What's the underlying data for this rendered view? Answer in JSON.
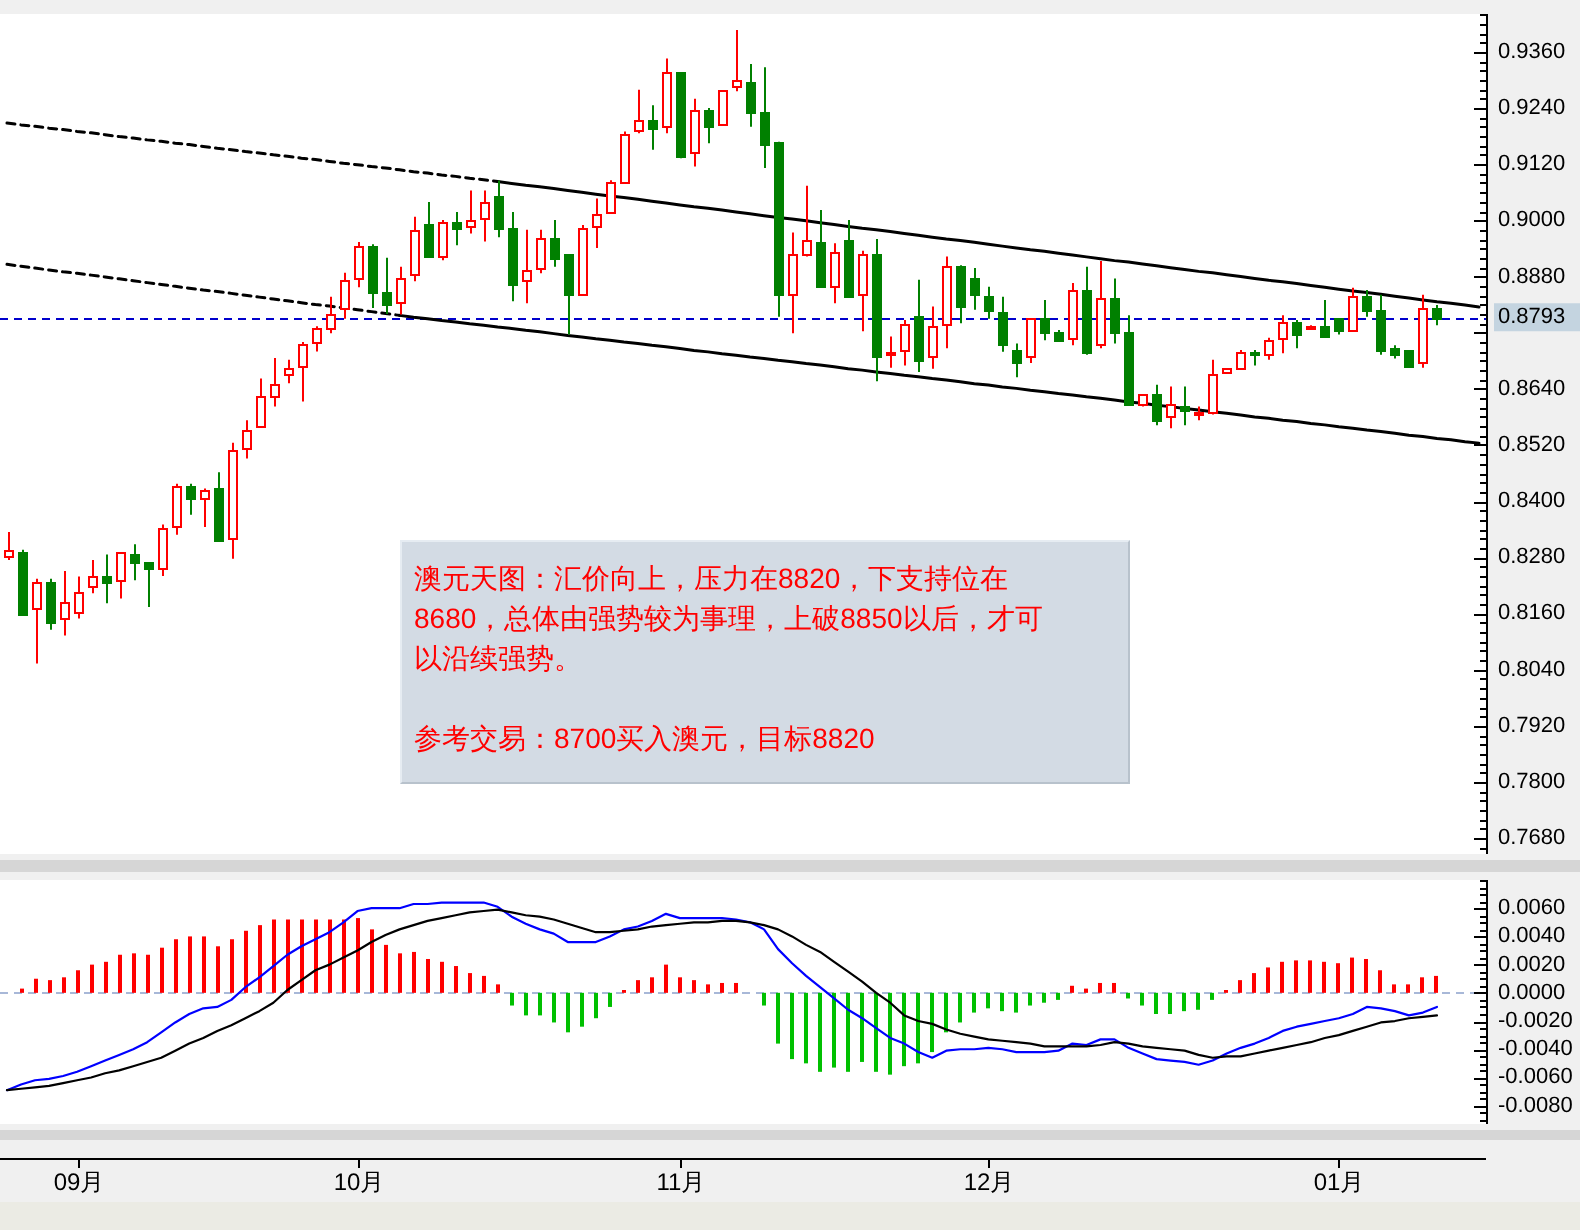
{
  "chart_data": [
    {
      "type": "candlestick",
      "categories": [
        null,
        null,
        null,
        null,
        null,
        null,
        null,
        null,
        null,
        null,
        null,
        null,
        null,
        null,
        null,
        null,
        null,
        null,
        null,
        null,
        null,
        null,
        null,
        null,
        null,
        null,
        null,
        null,
        null,
        null,
        null,
        null,
        null,
        null,
        null,
        null,
        null,
        null,
        null,
        null,
        null,
        null,
        null,
        null,
        null,
        null,
        null,
        null,
        null,
        null,
        null,
        null,
        null,
        null,
        null,
        null,
        null,
        null,
        null,
        null,
        null,
        null,
        null,
        null,
        null,
        null,
        null,
        null,
        null,
        null,
        null,
        null,
        null,
        null,
        null,
        null,
        null,
        null,
        null,
        null,
        null,
        null,
        null,
        null,
        null,
        null,
        null,
        null,
        null,
        null,
        null,
        null,
        null,
        null,
        null,
        null,
        null,
        null,
        null,
        null,
        null,
        null,
        null,
        null,
        null,
        null
      ],
      "ohlc": [
        [
          0.8281,
          0.8334,
          0.8274,
          0.8296
        ],
        [
          0.8291,
          0.8296,
          0.8157,
          0.816
        ],
        [
          0.817,
          0.8234,
          0.8053,
          0.8227
        ],
        [
          0.8227,
          0.8234,
          0.8125,
          0.8143
        ],
        [
          0.8149,
          0.8251,
          0.8113,
          0.8184
        ],
        [
          0.8162,
          0.8239,
          0.8149,
          0.8207
        ],
        [
          0.8217,
          0.8274,
          0.8203,
          0.8239
        ],
        [
          0.824,
          0.8286,
          0.8182,
          0.8229
        ],
        [
          0.823,
          0.8291,
          0.8192,
          0.8291
        ],
        [
          0.8286,
          0.8308,
          0.8231,
          0.8271
        ],
        [
          0.827,
          0.827,
          0.8174,
          0.8256
        ],
        [
          0.8256,
          0.835,
          0.824,
          0.8341
        ],
        [
          0.8345,
          0.8437,
          0.8328,
          0.8432
        ],
        [
          0.8432,
          0.8437,
          0.8371,
          0.8405
        ],
        [
          0.8408,
          0.8427,
          0.8345,
          0.8422
        ],
        [
          0.8428,
          0.8462,
          0.8314,
          0.8317
        ],
        [
          0.8323,
          0.8525,
          0.8277,
          0.8508
        ],
        [
          0.8512,
          0.8573,
          0.8491,
          0.8551
        ],
        [
          0.8559,
          0.8662,
          0.8559,
          0.8623
        ],
        [
          0.8623,
          0.8706,
          0.8602,
          0.8649
        ],
        [
          0.867,
          0.8702,
          0.8652,
          0.8683
        ],
        [
          0.8687,
          0.874,
          0.8613,
          0.8734
        ],
        [
          0.8739,
          0.8774,
          0.872,
          0.8769
        ],
        [
          0.877,
          0.8837,
          0.8759,
          0.8801
        ],
        [
          0.8813,
          0.8888,
          0.879,
          0.8871
        ],
        [
          0.8878,
          0.8954,
          0.8857,
          0.8945
        ],
        [
          0.8945,
          0.8949,
          0.8813,
          0.8848
        ],
        [
          0.8847,
          0.892,
          0.88,
          0.8821
        ],
        [
          0.8826,
          0.8901,
          0.8799,
          0.8877
        ],
        [
          0.8884,
          0.9008,
          0.887,
          0.8978
        ],
        [
          0.8992,
          0.9039,
          0.8921,
          0.8923
        ],
        [
          0.8925,
          0.9001,
          0.8915,
          0.8995
        ],
        [
          0.8995,
          0.9018,
          0.8947,
          0.8982
        ],
        [
          0.8987,
          0.9064,
          0.8972,
          0.9
        ],
        [
          0.9004,
          0.9064,
          0.8955,
          0.9038
        ],
        [
          0.9052,
          0.9085,
          0.8964,
          0.8982
        ],
        [
          0.8982,
          0.9018,
          0.8827,
          0.8866
        ],
        [
          0.8871,
          0.898,
          0.8823,
          0.8893
        ],
        [
          0.8897,
          0.898,
          0.8887,
          0.8962
        ],
        [
          0.8962,
          0.9001,
          0.8901,
          0.8918
        ],
        [
          0.8928,
          0.8928,
          0.8756,
          0.8841
        ],
        [
          0.8844,
          0.899,
          0.884,
          0.8982
        ],
        [
          0.8987,
          0.9047,
          0.8941,
          0.9015
        ],
        [
          0.9018,
          0.9086,
          0.9015,
          0.9082
        ],
        [
          0.9084,
          0.919,
          0.9079,
          0.9185
        ],
        [
          0.9192,
          0.9279,
          0.9186,
          0.9213
        ],
        [
          0.9213,
          0.9246,
          0.9151,
          0.9196
        ],
        [
          0.92,
          0.9346,
          0.9186,
          0.9317
        ],
        [
          0.9317,
          0.9317,
          0.9133,
          0.9136
        ],
        [
          0.9146,
          0.926,
          0.9115,
          0.9235
        ],
        [
          0.9236,
          0.924,
          0.9165,
          0.92
        ],
        [
          0.9205,
          0.9277,
          0.9205,
          0.9277
        ],
        [
          0.9286,
          0.9407,
          0.9276,
          0.9299
        ],
        [
          0.9295,
          0.9334,
          0.92,
          0.9232
        ],
        [
          0.9232,
          0.9327,
          0.9112,
          0.9163
        ],
        [
          0.9168,
          0.9168,
          0.8794,
          0.8843
        ],
        [
          0.8841,
          0.8974,
          0.8759,
          0.893
        ],
        [
          0.893,
          0.9074,
          0.8923,
          0.8957
        ],
        [
          0.8954,
          0.9022,
          0.8856,
          0.8858
        ],
        [
          0.8861,
          0.8951,
          0.8823,
          0.8933
        ],
        [
          0.8958,
          0.9001,
          0.8834,
          0.884
        ],
        [
          0.8844,
          0.8935,
          0.8763,
          0.8928
        ],
        [
          0.8928,
          0.896,
          0.8656,
          0.8709
        ],
        [
          0.8713,
          0.8752,
          0.8685,
          0.8719
        ],
        [
          0.8723,
          0.8787,
          0.869,
          0.8777
        ],
        [
          0.8797,
          0.8873,
          0.8676,
          0.8702
        ],
        [
          0.8709,
          0.8816,
          0.8683,
          0.8773
        ],
        [
          0.8777,
          0.8923,
          0.8727,
          0.8901
        ],
        [
          0.8901,
          0.8904,
          0.878,
          0.8816
        ],
        [
          0.8876,
          0.8898,
          0.8809,
          0.8841
        ],
        [
          0.8838,
          0.8858,
          0.879,
          0.8807
        ],
        [
          0.8804,
          0.8837,
          0.8719,
          0.8736
        ],
        [
          0.8723,
          0.8737,
          0.8665,
          0.8699
        ],
        [
          0.8709,
          0.879,
          0.8695,
          0.879
        ],
        [
          0.879,
          0.883,
          0.8744,
          0.8763
        ],
        [
          0.8762,
          0.8766,
          0.874,
          0.8743
        ],
        [
          0.8747,
          0.8866,
          0.8733,
          0.8851
        ],
        [
          0.8851,
          0.8901,
          0.8713,
          0.8719
        ],
        [
          0.8737,
          0.8913,
          0.8727,
          0.8833
        ],
        [
          0.8833,
          0.8876,
          0.8737,
          0.8762
        ],
        [
          0.8762,
          0.8797,
          0.8605,
          0.8609
        ],
        [
          0.8609,
          0.8628,
          0.8602,
          0.8628
        ],
        [
          0.8628,
          0.8649,
          0.8562,
          0.8573
        ],
        [
          0.8581,
          0.8645,
          0.8556,
          0.8606
        ],
        [
          0.8602,
          0.8645,
          0.8562,
          0.8595
        ],
        [
          0.8586,
          0.8602,
          0.8573,
          0.8589
        ],
        [
          0.8592,
          0.8702,
          0.8585,
          0.867
        ],
        [
          0.8677,
          0.8683,
          0.8677,
          0.8683
        ],
        [
          0.8683,
          0.8723,
          0.868,
          0.8719
        ],
        [
          0.8719,
          0.8723,
          0.869,
          0.8713
        ],
        [
          0.8713,
          0.8749,
          0.8702,
          0.8744
        ],
        [
          0.8747,
          0.8797,
          0.8716,
          0.8783
        ],
        [
          0.8783,
          0.8787,
          0.8727,
          0.8756
        ],
        [
          0.8773,
          0.8776,
          0.8773,
          0.8776
        ],
        [
          0.8776,
          0.883,
          0.8749,
          0.8752
        ],
        [
          0.8791,
          0.8791,
          0.8756,
          0.8764
        ],
        [
          0.8764,
          0.8856,
          0.8762,
          0.8837
        ],
        [
          0.8837,
          0.8851,
          0.8794,
          0.8807
        ],
        [
          0.8807,
          0.8841,
          0.8713,
          0.8722
        ],
        [
          0.8726,
          0.8733,
          0.8705,
          0.8716
        ],
        [
          0.8722,
          0.8722,
          0.869,
          0.869
        ],
        [
          0.8699,
          0.8841,
          0.8685,
          0.8811
        ],
        [
          0.8813,
          0.8819,
          0.8776,
          0.8793
        ],
        null,
        null,
        null
      ],
      "colors": [
        "#ff0000",
        "#008000",
        "#ff0000",
        "#008000",
        "#ff0000",
        "#ff0000",
        "#ff0000",
        "#008000",
        "#ff0000",
        "#008000",
        "#008000",
        "#ff0000",
        "#ff0000",
        "#008000",
        "#ff0000",
        "#008000",
        "#ff0000",
        "#ff0000",
        "#ff0000",
        "#ff0000",
        "#ff0000",
        "#ff0000",
        "#ff0000",
        "#ff0000",
        "#ff0000",
        "#ff0000",
        "#008000",
        "#008000",
        "#ff0000",
        "#ff0000",
        "#008000",
        "#ff0000",
        "#008000",
        "#ff0000",
        "#ff0000",
        "#008000",
        "#008000",
        "#ff0000",
        "#ff0000",
        "#008000",
        "#008000",
        "#ff0000",
        "#ff0000",
        "#ff0000",
        "#ff0000",
        "#ff0000",
        "#008000",
        "#ff0000",
        "#008000",
        "#ff0000",
        "#008000",
        "#ff0000",
        "#ff0000",
        "#008000",
        "#008000",
        "#008000",
        "#ff0000",
        "#ff0000",
        "#008000",
        "#ff0000",
        "#008000",
        "#ff0000",
        "#008000",
        "#ff0000",
        "#ff0000",
        "#008000",
        "#ff0000",
        "#ff0000",
        "#008000",
        "#008000",
        "#008000",
        "#008000",
        "#008000",
        "#ff0000",
        "#008000",
        "#008000",
        "#ff0000",
        "#008000",
        "#ff0000",
        "#008000",
        "#008000",
        "#ff0000",
        "#008000",
        "#ff0000",
        "#008000",
        "#ff0000",
        "#ff0000",
        "#ff0000",
        "#ff0000",
        "#008000",
        "#ff0000",
        "#ff0000",
        "#008000",
        "#ff0000",
        "#008000",
        "#008000",
        "#ff0000",
        "#008000",
        "#008000",
        "#008000",
        "#008000",
        "#ff0000",
        "#008000",
        null,
        null,
        null
      ],
      "series": [
        {
          "type": "line",
          "color": "#000000",
          "line_style": "dashed",
          "values": [
            0.9208,
            0.9204,
            0.9201,
            0.9197,
            0.9194,
            0.919,
            0.9187,
            0.9183,
            0.9179,
            0.9176,
            0.9172,
            0.9169,
            0.9165,
            0.9162,
            0.9158,
            0.9154,
            0.9151,
            0.9147,
            0.9144,
            0.914,
            0.9137,
            0.9133,
            0.913,
            0.9126,
            0.9122,
            0.9119,
            0.9115,
            0.9112,
            0.9108,
            0.9104,
            0.9101,
            0.9097,
            0.9094,
            0.909,
            0.9087,
            0.9083,
            null,
            null,
            null,
            null,
            null,
            null,
            null,
            null,
            null,
            null,
            null,
            null,
            null,
            null,
            null,
            null,
            null,
            null,
            null,
            null,
            null,
            null,
            null,
            null,
            null,
            null,
            null,
            null,
            null,
            null,
            null,
            null,
            null,
            null,
            null,
            null,
            null,
            null,
            null,
            null,
            null,
            null,
            null,
            null,
            null,
            null,
            null,
            null,
            null,
            null,
            null,
            null,
            null,
            null,
            null,
            null,
            null,
            null,
            null,
            null,
            null,
            null,
            null,
            null,
            null,
            null,
            null,
            null,
            null,
            null
          ]
        },
        {
          "type": "line",
          "color": "#000000",
          "line_style": "solid",
          "values": [
            null,
            null,
            null,
            null,
            null,
            null,
            null,
            null,
            null,
            null,
            null,
            null,
            null,
            null,
            null,
            null,
            null,
            null,
            null,
            null,
            null,
            null,
            null,
            null,
            null,
            null,
            null,
            null,
            null,
            null,
            null,
            null,
            null,
            null,
            null,
            0.9083,
            0.9079,
            0.9075,
            0.9072,
            0.9068,
            0.9064,
            0.906,
            0.9056,
            0.9052,
            0.9049,
            0.9045,
            0.9041,
            0.9037,
            0.9033,
            0.9029,
            0.9026,
            0.9022,
            0.9018,
            0.9014,
            0.901,
            0.9006,
            0.9003,
            0.8999,
            0.8995,
            0.8991,
            0.8987,
            0.8983,
            0.898,
            0.8976,
            0.8972,
            0.8968,
            0.8964,
            0.896,
            0.8957,
            0.8953,
            0.8949,
            0.8945,
            0.8941,
            0.8937,
            0.8934,
            0.893,
            0.8926,
            0.8922,
            0.8918,
            0.8914,
            0.8911,
            0.8907,
            0.8903,
            0.8899,
            0.8895,
            0.8891,
            0.8888,
            0.8884,
            0.888,
            0.8876,
            0.8872,
            0.8869,
            0.8865,
            0.8861,
            0.8857,
            0.8853,
            0.8849,
            0.8846,
            0.8842,
            0.8838,
            0.8834,
            0.883,
            0.8826,
            0.8823,
            0.8819,
            0.8815
          ]
        },
        {
          "type": "line",
          "color": "#000000",
          "line_style": "dashed",
          "values": [
            0.8906,
            0.8902,
            0.8898,
            0.8894,
            0.889,
            0.8887,
            0.8883,
            0.8879,
            0.8875,
            0.8871,
            0.8867,
            0.8863,
            0.8859,
            0.8855,
            0.8851,
            0.8848,
            0.8844,
            0.884,
            0.8836,
            0.8832,
            0.8828,
            0.8824,
            0.882,
            0.8817,
            0.8813,
            0.8809,
            0.8805,
            0.8801,
            0.8797,
            null,
            null,
            null,
            null,
            null,
            null,
            null,
            null,
            null,
            null,
            null,
            null,
            null,
            null,
            null,
            null,
            null,
            null,
            null,
            null,
            null,
            null,
            null,
            null,
            null,
            null,
            null,
            null,
            null,
            null,
            null,
            null,
            null,
            null,
            null,
            null,
            null,
            null,
            null,
            null,
            null,
            null,
            null,
            null,
            null,
            null,
            null,
            null,
            null,
            null,
            null,
            null,
            null,
            null,
            null,
            null,
            null,
            null,
            null,
            null,
            null,
            null,
            null,
            null,
            null,
            null,
            null,
            null,
            null,
            null,
            null,
            null,
            null,
            null,
            null,
            null,
            null
          ]
        },
        {
          "type": "line",
          "color": "#000000",
          "line_style": "solid",
          "values": [
            null,
            null,
            null,
            null,
            null,
            null,
            null,
            null,
            null,
            null,
            null,
            null,
            null,
            null,
            null,
            null,
            null,
            null,
            null,
            null,
            null,
            null,
            null,
            null,
            null,
            null,
            null,
            null,
            0.8797,
            0.8793,
            0.879,
            0.8786,
            0.8783,
            0.8779,
            0.8776,
            0.8772,
            0.8769,
            0.8765,
            0.8762,
            0.8758,
            0.8754,
            0.8751,
            0.8747,
            0.8744,
            0.874,
            0.8737,
            0.8733,
            0.873,
            0.8726,
            0.8722,
            0.8719,
            0.8715,
            0.8712,
            0.8708,
            0.8705,
            0.8701,
            0.8698,
            0.8694,
            0.8691,
            0.8687,
            0.8683,
            0.868,
            0.8676,
            0.8673,
            0.8669,
            0.8666,
            0.8662,
            0.8659,
            0.8655,
            0.8651,
            0.8648,
            0.8644,
            0.8641,
            0.8637,
            0.8634,
            0.863,
            0.8627,
            0.8623,
            0.862,
            0.8616,
            0.8612,
            0.8609,
            0.8605,
            0.8602,
            0.8598,
            0.8595,
            0.8591,
            0.8588,
            0.8584,
            0.858,
            0.8577,
            0.8573,
            0.857,
            0.8566,
            0.8563,
            0.8559,
            0.8556,
            0.8552,
            0.8549,
            0.8545,
            0.8541,
            0.8538,
            0.8534,
            0.8531,
            0.8527,
            0.8524
          ]
        }
      ],
      "ylim": [
        0.7646,
        0.9441
      ],
      "yticks": [
        {
          "value": 0.936,
          "label": "0.9360"
        },
        {
          "value": 0.924,
          "label": "0.9240"
        },
        {
          "value": 0.912,
          "label": "0.9120"
        },
        {
          "value": 0.9,
          "label": "0.9000"
        },
        {
          "value": 0.888,
          "label": "0.8880"
        },
        {
          "value": 0.876,
          "label": null
        },
        {
          "value": 0.864,
          "label": "0.8640"
        },
        {
          "value": 0.852,
          "label": "0.8520"
        },
        {
          "value": 0.84,
          "label": "0.8400"
        },
        {
          "value": 0.828,
          "label": "0.8280"
        },
        {
          "value": 0.816,
          "label": "0.8160"
        },
        {
          "value": 0.804,
          "label": "0.8040"
        },
        {
          "value": 0.792,
          "label": "0.7920"
        },
        {
          "value": 0.78,
          "label": "0.7800"
        },
        {
          "value": 0.768,
          "label": "0.7680"
        }
      ],
      "ref_lines": [
        {
          "axis": "y",
          "value": 0.8793,
          "label": "0.8793",
          "color": "#0000cc",
          "line_style": "dashed"
        }
      ],
      "annotations": [
        "澳元天图：汇价向上，压力在8820，下支持位在8680，总体由强势较为事理，上破8850以后，才可以沿续强势。",
        "参考交易：8700买入澳元，目标8820"
      ]
    },
    {
      "type": "bar",
      "categories": [
        null,
        null,
        null,
        null,
        null,
        "09月",
        null,
        null,
        null,
        null,
        null,
        null,
        null,
        null,
        null,
        null,
        null,
        null,
        null,
        null,
        null,
        null,
        null,
        null,
        null,
        "10月",
        null,
        null,
        null,
        null,
        null,
        null,
        null,
        null,
        null,
        null,
        null,
        null,
        null,
        null,
        null,
        null,
        null,
        null,
        null,
        null,
        null,
        null,
        "11月",
        null,
        null,
        null,
        null,
        null,
        null,
        null,
        null,
        null,
        null,
        null,
        null,
        null,
        null,
        null,
        null,
        null,
        null,
        null,
        null,
        null,
        "12月",
        null,
        null,
        null,
        null,
        null,
        null,
        null,
        null,
        null,
        null,
        null,
        null,
        null,
        null,
        null,
        null,
        null,
        null,
        null,
        null,
        null,
        null,
        null,
        null,
        "01月",
        null,
        null,
        null,
        null,
        null,
        null,
        null,
        null,
        null,
        null
      ],
      "series": [
        {
          "type": "bar",
          "values": [
            null,
            0.0003,
            0.001,
            0.0009,
            0.0011,
            0.0016,
            0.002,
            0.0022,
            0.0027,
            0.0028,
            0.0027,
            0.0032,
            0.0038,
            0.004,
            0.004,
            0.0033,
            0.0038,
            0.0044,
            0.0048,
            0.0052,
            0.0052,
            0.0052,
            0.0052,
            0.0052,
            0.0052,
            0.0053,
            0.0045,
            0.0034,
            0.0028,
            0.0029,
            0.0024,
            0.0022,
            0.0019,
            0.0014,
            0.0012,
            0.0006,
            -0.0009,
            -0.0016,
            -0.0016,
            -0.0021,
            -0.0028,
            -0.0024,
            -0.0018,
            -0.001,
            0.0002,
            0.0009,
            0.0011,
            0.002,
            0.0011,
            0.0009,
            0.0006,
            0.0007,
            0.0007,
            null,
            -0.0009,
            -0.0036,
            -0.0047,
            -0.005,
            -0.0056,
            -0.0053,
            -0.0056,
            -0.0049,
            -0.0056,
            -0.0058,
            -0.0052,
            -0.005,
            -0.0042,
            -0.0028,
            -0.0021,
            -0.0014,
            -0.0011,
            -0.0013,
            -0.0014,
            -0.0009,
            -0.0007,
            -0.0005,
            0.0005,
            0.0003,
            0.0007,
            0.0007,
            -0.0004,
            -0.0009,
            -0.0015,
            -0.0015,
            -0.0013,
            -0.0012,
            -0.0005,
            0.0002,
            0.0009,
            0.0014,
            0.0018,
            0.0022,
            0.0023,
            0.0023,
            0.0022,
            0.0021,
            0.0025,
            0.0024,
            0.0016,
            0.0006,
            0.0006,
            0.0011,
            0.0012,
            null,
            null,
            null
          ],
          "colors": [
            null,
            "#ff0000",
            "#ff0000",
            "#ff0000",
            "#ff0000",
            "#ff0000",
            "#ff0000",
            "#ff0000",
            "#ff0000",
            "#ff0000",
            "#ff0000",
            "#ff0000",
            "#ff0000",
            "#ff0000",
            "#ff0000",
            "#ff0000",
            "#ff0000",
            "#ff0000",
            "#ff0000",
            "#ff0000",
            "#ff0000",
            "#ff0000",
            "#ff0000",
            "#ff0000",
            "#ff0000",
            "#ff0000",
            "#ff0000",
            "#ff0000",
            "#ff0000",
            "#ff0000",
            "#ff0000",
            "#ff0000",
            "#ff0000",
            "#ff0000",
            "#ff0000",
            "#ff0000",
            "#00c000",
            "#00c000",
            "#00c000",
            "#00c000",
            "#00c000",
            "#00c000",
            "#00c000",
            "#00c000",
            "#ff0000",
            "#ff0000",
            "#ff0000",
            "#ff0000",
            "#ff0000",
            "#ff0000",
            "#ff0000",
            "#ff0000",
            "#ff0000",
            null,
            "#00c000",
            "#00c000",
            "#00c000",
            "#00c000",
            "#00c000",
            "#00c000",
            "#00c000",
            "#00c000",
            "#00c000",
            "#00c000",
            "#00c000",
            "#00c000",
            "#00c000",
            "#00c000",
            "#00c000",
            "#00c000",
            "#00c000",
            "#00c000",
            "#00c000",
            "#00c000",
            "#00c000",
            "#00c000",
            "#ff0000",
            "#ff0000",
            "#ff0000",
            "#ff0000",
            "#00c000",
            "#00c000",
            "#00c000",
            "#00c000",
            "#00c000",
            "#00c000",
            "#00c000",
            "#ff0000",
            "#ff0000",
            "#ff0000",
            "#ff0000",
            "#ff0000",
            "#ff0000",
            "#ff0000",
            "#ff0000",
            "#ff0000",
            "#ff0000",
            "#ff0000",
            "#ff0000",
            "#ff0000",
            "#ff0000",
            "#ff0000",
            "#ff0000",
            null,
            null,
            null
          ]
        },
        {
          "type": "line",
          "color": "#0000ff",
          "values": [
            -0.0069,
            -0.0065,
            -0.0062,
            -0.0061,
            -0.0059,
            -0.0056,
            -0.0052,
            -0.0048,
            -0.0044,
            -0.004,
            -0.0035,
            -0.0028,
            -0.0021,
            -0.0015,
            -0.0011,
            -0.001,
            -0.0005,
            0.0004,
            0.0011,
            0.0019,
            0.0027,
            0.0033,
            0.0038,
            0.0043,
            0.005,
            0.0058,
            0.006,
            0.006,
            0.006,
            0.0063,
            0.0063,
            0.0064,
            0.0064,
            0.0064,
            0.0064,
            0.0061,
            0.0054,
            0.0049,
            0.0045,
            0.0042,
            0.0036,
            0.0036,
            0.0036,
            0.004,
            0.0045,
            0.0047,
            0.0051,
            0.0056,
            0.0053,
            0.0053,
            0.0053,
            0.0053,
            0.0052,
            0.005,
            0.0045,
            0.0031,
            0.0021,
            0.0012,
            0.0004,
            -0.0004,
            -0.0012,
            -0.0018,
            -0.0025,
            -0.0032,
            -0.0036,
            -0.0042,
            -0.0046,
            -0.0041,
            -0.004,
            -0.004,
            -0.0039,
            -0.004,
            -0.0042,
            -0.0042,
            -0.0042,
            -0.0041,
            -0.0036,
            -0.0037,
            -0.0033,
            -0.0033,
            -0.0039,
            -0.0043,
            -0.0047,
            -0.0048,
            -0.0049,
            -0.0051,
            -0.0048,
            -0.0043,
            -0.0039,
            -0.0036,
            -0.0032,
            -0.0027,
            -0.0024,
            -0.0022,
            -0.002,
            -0.0018,
            -0.0015,
            -0.001,
            -0.0011,
            -0.0013,
            -0.0016,
            -0.0014,
            -0.001,
            null,
            null,
            null
          ]
        },
        {
          "type": "line",
          "color": "#000000",
          "values": [
            -0.0069,
            -0.0068,
            -0.0067,
            -0.0066,
            -0.0064,
            -0.0062,
            -0.006,
            -0.0057,
            -0.0055,
            -0.0052,
            -0.0049,
            -0.0046,
            -0.0041,
            -0.0036,
            -0.0032,
            -0.0027,
            -0.0023,
            -0.0018,
            -0.0013,
            -0.0007,
            0.0002,
            0.0009,
            0.0016,
            0.002,
            0.0025,
            0.003,
            0.0036,
            0.0041,
            0.0045,
            0.0048,
            0.0051,
            0.0053,
            0.0055,
            0.0057,
            0.0058,
            0.0059,
            0.0057,
            0.0055,
            0.0054,
            0.0052,
            0.0049,
            0.0046,
            0.0043,
            0.0043,
            0.0044,
            0.0045,
            0.0047,
            0.0048,
            0.0049,
            0.005,
            0.005,
            0.0051,
            0.0051,
            0.005,
            0.0048,
            0.0045,
            0.004,
            0.0034,
            0.0029,
            0.0022,
            0.0015,
            0.0008,
            0.0,
            -0.0007,
            -0.0016,
            -0.002,
            -0.0022,
            -0.0026,
            -0.0029,
            -0.0031,
            -0.0033,
            -0.0034,
            -0.0035,
            -0.0036,
            -0.0038,
            -0.0038,
            -0.0038,
            -0.0038,
            -0.0037,
            -0.0035,
            -0.0036,
            -0.0038,
            -0.0039,
            -0.004,
            -0.0041,
            -0.0044,
            -0.0046,
            -0.0045,
            -0.0045,
            -0.0043,
            -0.0041,
            -0.0039,
            -0.0037,
            -0.0035,
            -0.0032,
            -0.003,
            -0.0027,
            -0.0024,
            -0.0021,
            -0.002,
            -0.0018,
            -0.0017,
            -0.0016,
            null,
            null,
            null
          ]
        }
      ],
      "ylim": [
        -0.0093,
        0.008
      ],
      "yticks": [
        {
          "value": 0.006,
          "label": "0.0060"
        },
        {
          "value": 0.004,
          "label": "0.0040"
        },
        {
          "value": 0.002,
          "label": "0.0020"
        },
        {
          "value": 0,
          "label": "0.0000"
        },
        {
          "value": -0.002,
          "label": "-0.0020"
        },
        {
          "value": -0.004,
          "label": "-0.0040"
        },
        {
          "value": -0.006,
          "label": "-0.0060"
        },
        {
          "value": -0.008,
          "label": "-0.0080"
        }
      ],
      "ref_lines": [
        {
          "axis": "y",
          "value": 0,
          "color": "#a8b8d8",
          "line_style": "dashed"
        }
      ]
    }
  ]
}
